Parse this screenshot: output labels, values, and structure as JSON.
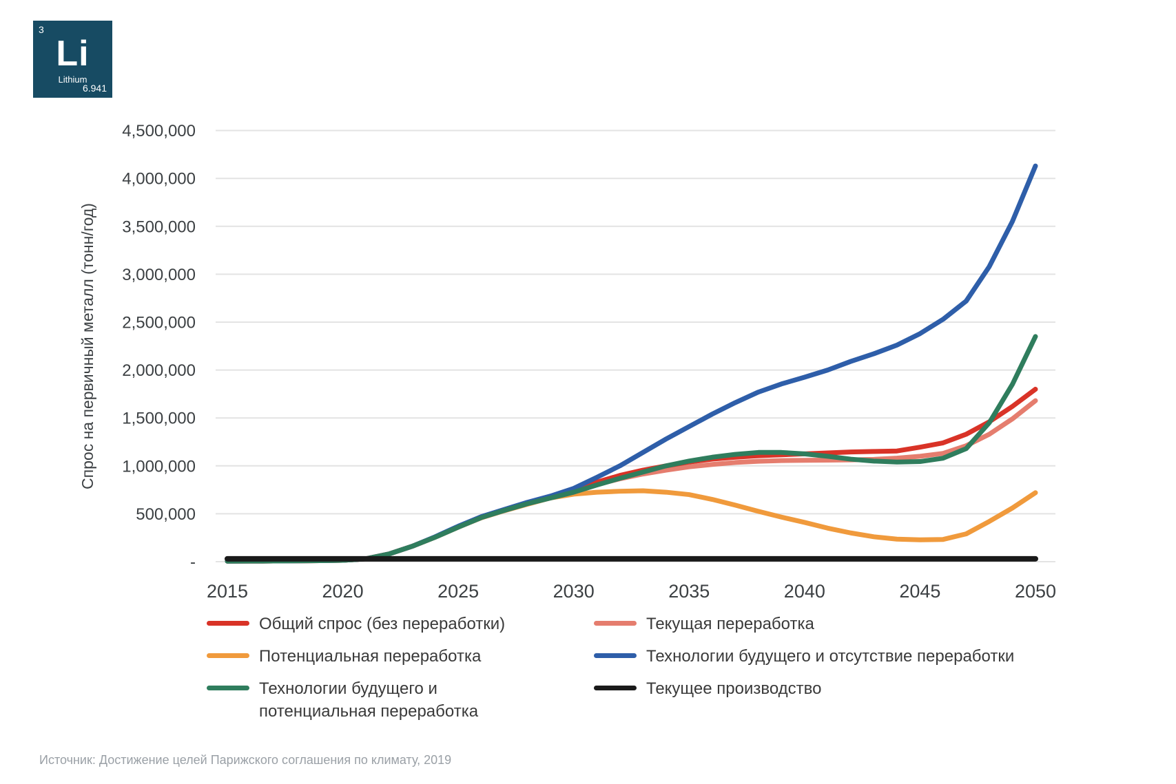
{
  "element_tile": {
    "atomic_number": "3",
    "symbol": "Li",
    "name": "Lithium",
    "atomic_mass": "6.941",
    "bg_color": "#174b63"
  },
  "chart_data": {
    "type": "line",
    "title": "",
    "xlabel": "",
    "ylabel": "Спрос на первичный металл (тонн/год)",
    "xlim": [
      2015,
      2050
    ],
    "ylim": [
      0,
      4500000
    ],
    "grid": true,
    "legend_position": "bottom",
    "y_ticks": [
      {
        "value": 4500000,
        "label": "4,500,000"
      },
      {
        "value": 4000000,
        "label": "4,000,000"
      },
      {
        "value": 3500000,
        "label": "3,500,000"
      },
      {
        "value": 3000000,
        "label": "3,000,000"
      },
      {
        "value": 2500000,
        "label": "2,500,000"
      },
      {
        "value": 2000000,
        "label": "2,000,000"
      },
      {
        "value": 1500000,
        "label": "1,500,000"
      },
      {
        "value": 1000000,
        "label": "1,000,000"
      },
      {
        "value": 500000,
        "label": "500,000"
      },
      {
        "value": 0,
        "label": "-"
      }
    ],
    "x_ticks": [
      {
        "value": 2015,
        "label": "2015"
      },
      {
        "value": 2020,
        "label": "2020"
      },
      {
        "value": 2025,
        "label": "2025"
      },
      {
        "value": 2030,
        "label": "2030"
      },
      {
        "value": 2035,
        "label": "2035"
      },
      {
        "value": 2040,
        "label": "2040"
      },
      {
        "value": 2045,
        "label": "2045"
      },
      {
        "value": 2050,
        "label": "2050"
      }
    ],
    "x": [
      2015,
      2016,
      2017,
      2018,
      2019,
      2020,
      2021,
      2022,
      2023,
      2024,
      2025,
      2026,
      2027,
      2028,
      2029,
      2030,
      2031,
      2032,
      2033,
      2034,
      2035,
      2036,
      2037,
      2038,
      2039,
      2040,
      2041,
      2042,
      2043,
      2044,
      2045,
      2046,
      2047,
      2048,
      2049,
      2050
    ],
    "series": [
      {
        "name": "Общий спрос (без переработки)",
        "color": "#d93327",
        "values": [
          5000,
          6000,
          7000,
          9000,
          11000,
          14000,
          30000,
          80000,
          160000,
          258000,
          365000,
          465000,
          540000,
          612000,
          672000,
          740000,
          830000,
          900000,
          955000,
          1000000,
          1040000,
          1070000,
          1090000,
          1105000,
          1115000,
          1125000,
          1135000,
          1145000,
          1150000,
          1155000,
          1195000,
          1240000,
          1330000,
          1460000,
          1620000,
          1800000
        ]
      },
      {
        "name": "Текущая переработка",
        "color": "#e57d6e",
        "values": [
          5000,
          6000,
          7000,
          9000,
          11000,
          14000,
          30000,
          80000,
          160000,
          256000,
          362000,
          460000,
          535000,
          606000,
          668000,
          725000,
          805000,
          865000,
          915000,
          955000,
          990000,
          1015000,
          1035000,
          1048000,
          1055000,
          1058000,
          1060000,
          1062000,
          1068000,
          1080000,
          1100000,
          1130000,
          1210000,
          1330000,
          1490000,
          1680000
        ]
      },
      {
        "name": "Потенциальная переработка",
        "color": "#f09a3c",
        "values": [
          5000,
          6000,
          7000,
          9000,
          11000,
          14000,
          30000,
          80000,
          160000,
          255000,
          360000,
          458000,
          532000,
          600000,
          665000,
          705000,
          725000,
          735000,
          740000,
          725000,
          700000,
          650000,
          590000,
          525000,
          465000,
          410000,
          350000,
          300000,
          260000,
          235000,
          228000,
          232000,
          290000,
          420000,
          560000,
          720000
        ]
      },
      {
        "name": "Технологии будущего и отсутствие переработки",
        "color": "#2e5ea9",
        "values": [
          5000,
          6000,
          7000,
          9000,
          11000,
          14000,
          30000,
          80000,
          160000,
          260000,
          370000,
          470000,
          545000,
          620000,
          685000,
          765000,
          880000,
          1000000,
          1140000,
          1280000,
          1410000,
          1540000,
          1660000,
          1770000,
          1855000,
          1925000,
          2000000,
          2090000,
          2170000,
          2260000,
          2380000,
          2530000,
          2720000,
          3080000,
          3550000,
          4130000
        ]
      },
      {
        "name": "Технологии будущего и потенциальная переработка",
        "color": "#2f7d5d",
        "values": [
          5000,
          6000,
          7000,
          9000,
          11000,
          14000,
          30000,
          80000,
          160000,
          255000,
          360000,
          460000,
          535000,
          605000,
          665000,
          725000,
          800000,
          870000,
          935000,
          1000000,
          1050000,
          1090000,
          1120000,
          1140000,
          1140000,
          1125000,
          1100000,
          1070000,
          1050000,
          1040000,
          1045000,
          1080000,
          1180000,
          1450000,
          1850000,
          2350000
        ]
      },
      {
        "name": "Текущее производство",
        "color": "#1a1a1a",
        "values": [
          30000,
          30000,
          30000,
          30000,
          30000,
          30000,
          30000,
          30000,
          30000,
          30000,
          30000,
          30000,
          30000,
          30000,
          30000,
          30000,
          30000,
          30000,
          30000,
          30000,
          30000,
          30000,
          30000,
          30000,
          30000,
          30000,
          30000,
          30000,
          30000,
          30000,
          30000,
          30000,
          30000,
          30000,
          30000,
          30000
        ]
      }
    ]
  },
  "source": {
    "text": "Источник: Достижение целей Парижского соглашения по климату, 2019"
  }
}
